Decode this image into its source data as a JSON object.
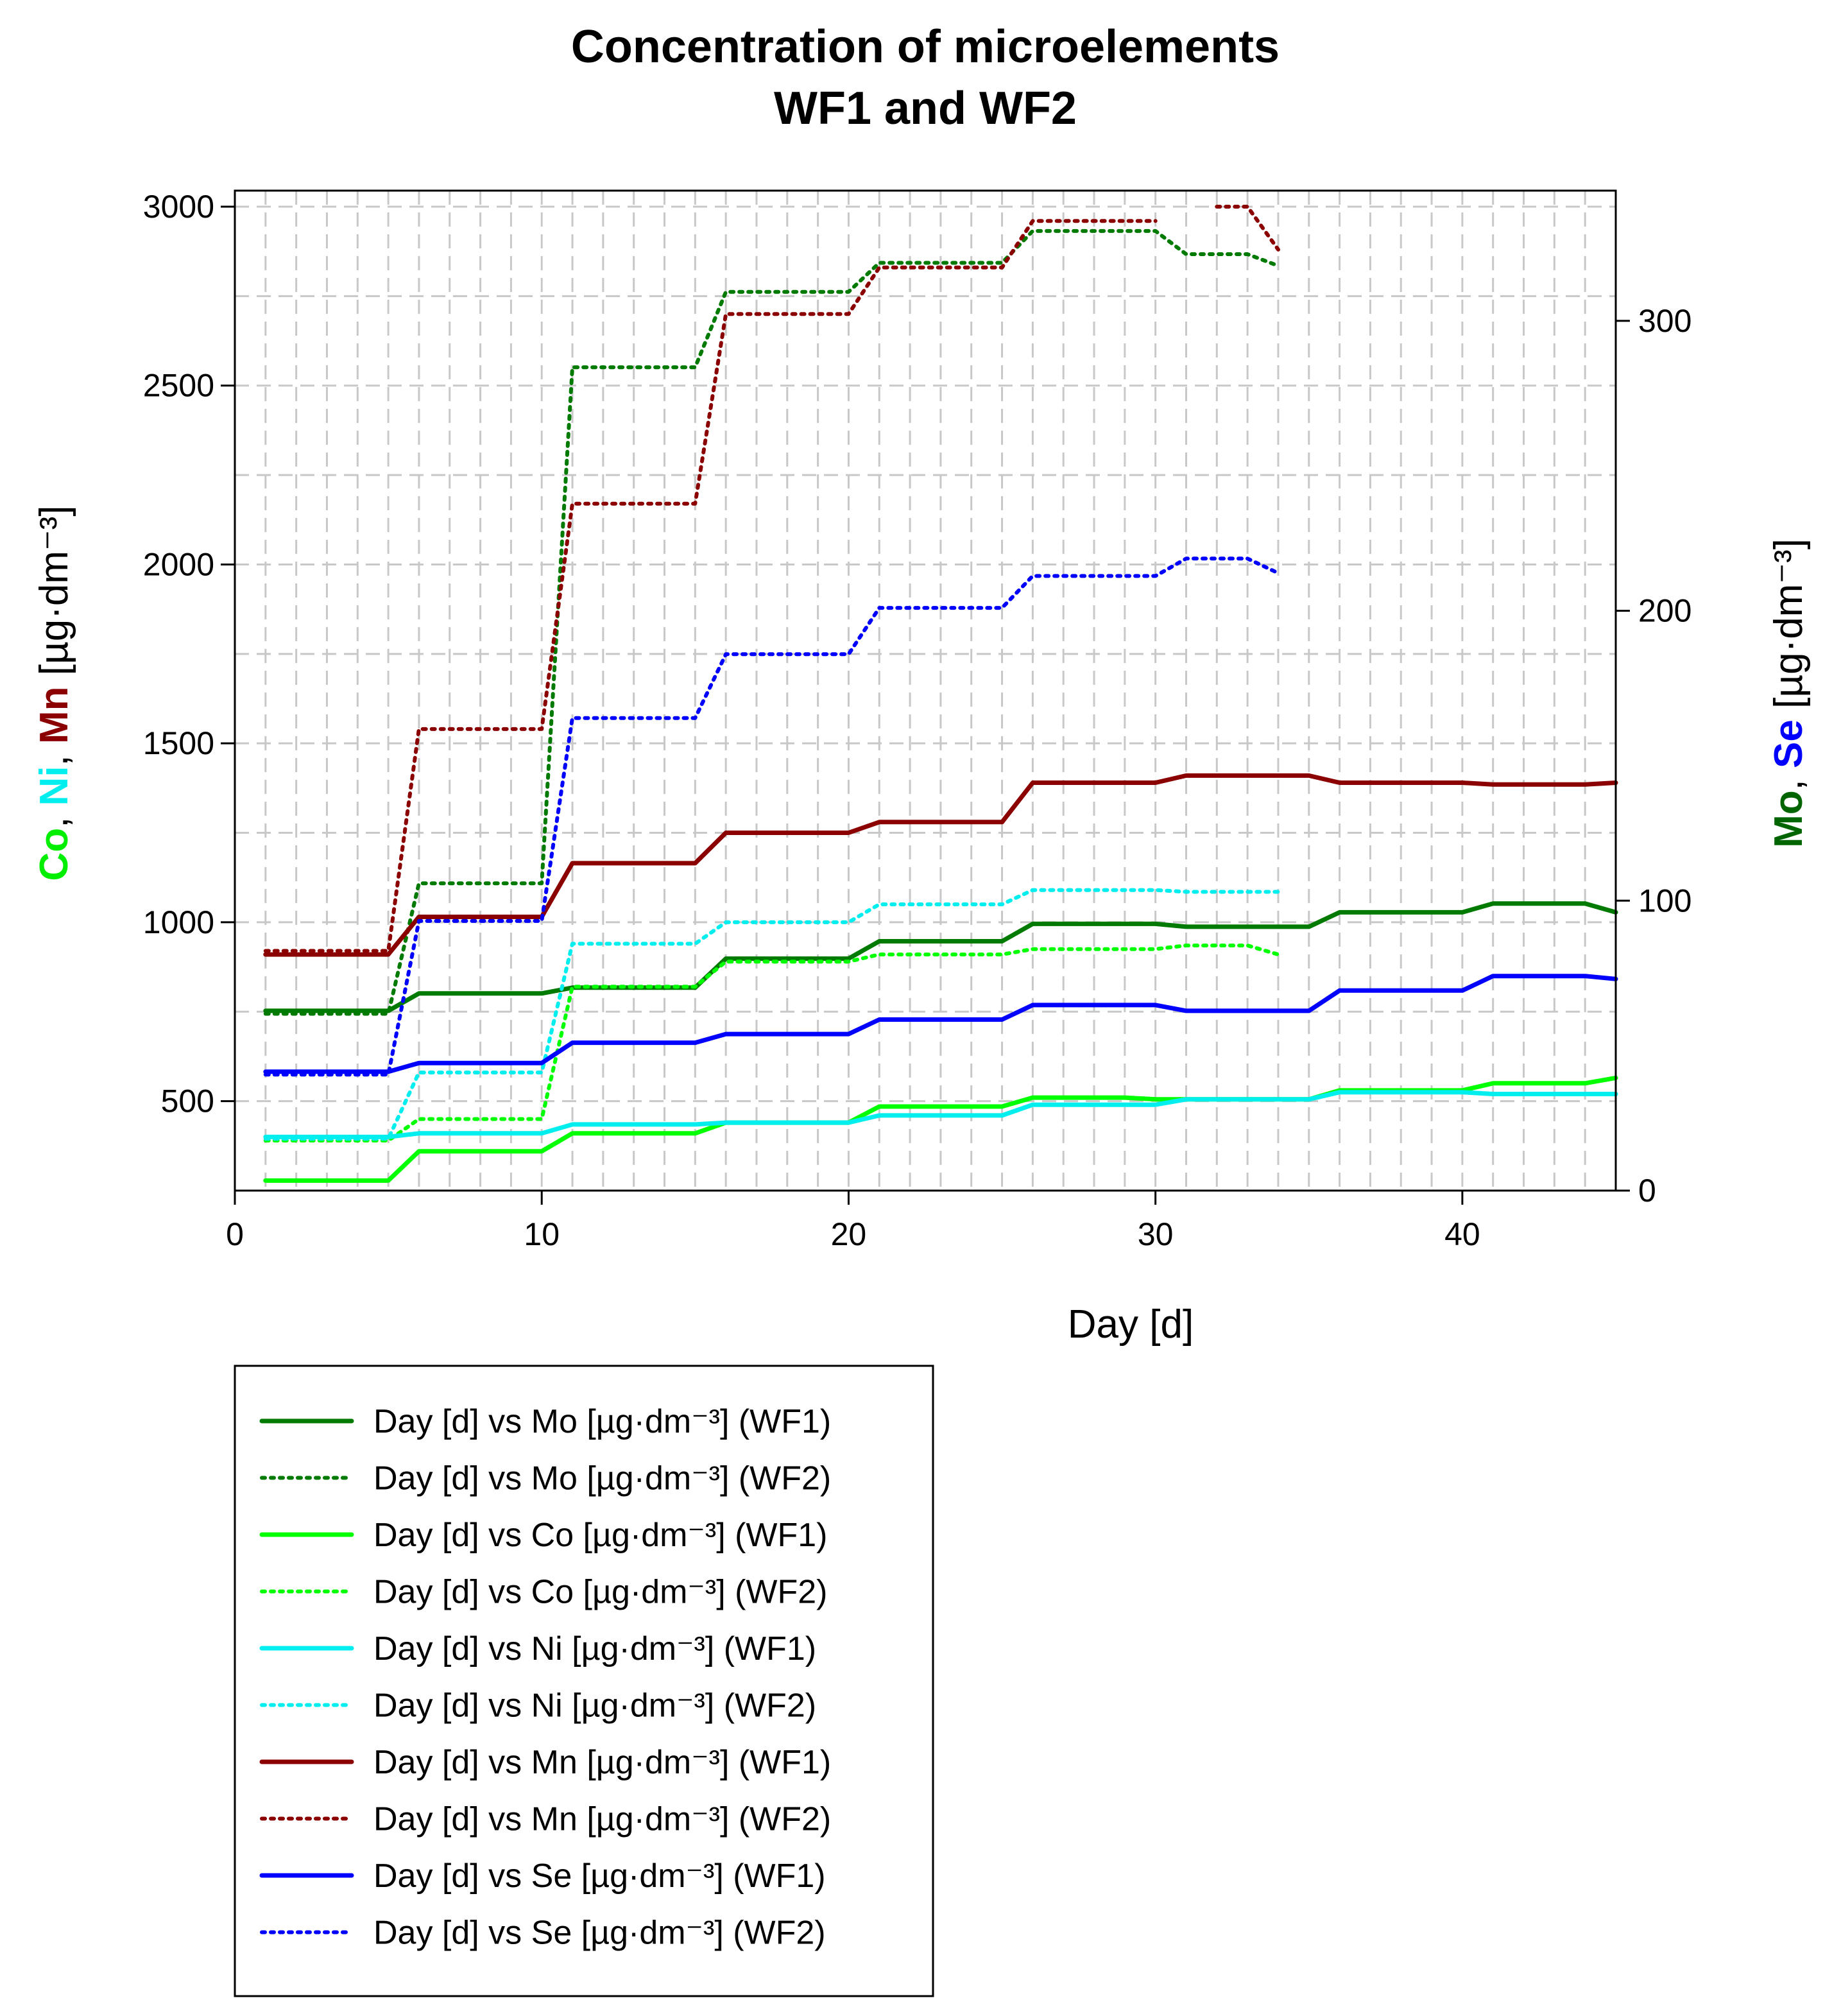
{
  "chart_data": {
    "type": "line",
    "title_line1": "Concentration of microelements",
    "title_line2": "WF1 and WF2",
    "xlabel": "Day [d]",
    "xlim": [
      0,
      45
    ],
    "xticks": [
      0,
      10,
      20,
      30,
      40
    ],
    "ylim_left": [
      250,
      3000
    ],
    "yticks_left": [
      500,
      1000,
      1500,
      2000,
      2500,
      3000
    ],
    "ylim_right": [
      0,
      345
    ],
    "yticks_right": [
      0,
      100,
      200,
      300
    ],
    "ylabel_left": {
      "parts": [
        {
          "text": "Co",
          "color": "#00ee00",
          "bold": true
        },
        {
          "text": ", ",
          "color": "#000000",
          "bold": false
        },
        {
          "text": "Ni",
          "color": "#00eeee",
          "bold": true
        },
        {
          "text": ", ",
          "color": "#000000",
          "bold": false
        },
        {
          "text": "Mn",
          "color": "#8b0000",
          "bold": true
        },
        {
          "text": " [µg·dm⁻³]",
          "color": "#000000",
          "bold": false
        }
      ]
    },
    "ylabel_right": {
      "parts": [
        {
          "text": "Mo",
          "color": "#006400",
          "bold": true
        },
        {
          "text": ", ",
          "color": "#000000",
          "bold": false
        },
        {
          "text": "Se",
          "color": "#0000ff",
          "bold": true
        },
        {
          "text": " [µg·dm⁻³]",
          "color": "#000000",
          "bold": false
        }
      ]
    },
    "series": [
      {
        "name": "Mo",
        "group": "WF1",
        "legend": "Day [d] vs Mo [µg·dm⁻³] (WF1)",
        "axis": "right",
        "color": "#007a00",
        "style": "solid",
        "x": [
          1,
          5,
          6,
          10,
          11,
          15,
          16,
          20,
          21,
          25,
          26,
          30,
          31,
          35,
          36,
          40,
          41,
          44,
          45
        ],
        "y": [
          62,
          62,
          68,
          68,
          70,
          70,
          80,
          80,
          86,
          86,
          92,
          92,
          91,
          91,
          96,
          96,
          99,
          99,
          96
        ]
      },
      {
        "name": "Mo",
        "group": "WF2",
        "legend": "Day [d] vs Mo [µg·dm⁻³] (WF2)",
        "axis": "right",
        "color": "#007a00",
        "style": "dotted",
        "x": [
          1,
          5,
          6,
          10,
          11,
          15,
          16,
          20,
          21,
          25,
          26,
          30,
          31,
          33,
          34
        ],
        "y": [
          61,
          61,
          106,
          106,
          284,
          284,
          310,
          310,
          320,
          320,
          331,
          331,
          323,
          323,
          319
        ]
      },
      {
        "name": "Co",
        "group": "WF1",
        "legend": "Day [d] vs Co [µg·dm⁻³] (WF1)",
        "axis": "left",
        "color": "#00ff00",
        "style": "solid",
        "x": [
          1,
          5,
          6,
          10,
          11,
          15,
          16,
          20,
          21,
          25,
          26,
          29,
          30,
          35,
          36,
          40,
          41,
          44,
          45
        ],
        "y": [
          278,
          278,
          360,
          360,
          410,
          410,
          440,
          440,
          485,
          485,
          510,
          510,
          505,
          505,
          530,
          530,
          550,
          550,
          565
        ]
      },
      {
        "name": "Co",
        "group": "WF2",
        "legend": "Day [d] vs Co [µg·dm⁻³] (WF2)",
        "axis": "left",
        "color": "#00ff00",
        "style": "dotted",
        "x": [
          1,
          5,
          6,
          10,
          11,
          15,
          16,
          20,
          21,
          25,
          26,
          30,
          31,
          33,
          34
        ],
        "y": [
          390,
          390,
          450,
          450,
          820,
          820,
          890,
          890,
          910,
          910,
          925,
          925,
          935,
          935,
          910
        ]
      },
      {
        "name": "Ni",
        "group": "WF1",
        "legend": "Day [d] vs Ni [µg·dm⁻³] (WF1)",
        "axis": "left",
        "color": "#00eeee",
        "style": "solid",
        "x": [
          1,
          5,
          6,
          10,
          11,
          15,
          16,
          20,
          21,
          25,
          26,
          30,
          31,
          35,
          36,
          40,
          41,
          45
        ],
        "y": [
          400,
          400,
          410,
          410,
          435,
          435,
          440,
          440,
          460,
          460,
          490,
          490,
          505,
          505,
          525,
          525,
          520,
          520
        ]
      },
      {
        "name": "Ni",
        "group": "WF2",
        "legend": "Day [d] vs Ni [µg·dm⁻³] (WF2)",
        "axis": "left",
        "color": "#00eeee",
        "style": "dotted",
        "x": [
          1,
          5,
          6,
          10,
          11,
          15,
          16,
          20,
          21,
          25,
          26,
          30,
          31,
          34
        ],
        "y": [
          395,
          395,
          580,
          580,
          940,
          940,
          1000,
          1000,
          1050,
          1050,
          1090,
          1090,
          1085,
          1085
        ]
      },
      {
        "name": "Mn",
        "group": "WF1",
        "legend": "Day [d] vs Mn [µg·dm⁻³] (WF1)",
        "axis": "left",
        "color": "#8b0000",
        "style": "solid",
        "x": [
          1,
          5,
          6,
          10,
          11,
          15,
          16,
          20,
          21,
          25,
          26,
          30,
          31,
          35,
          36,
          40,
          41,
          44,
          45
        ],
        "y": [
          910,
          910,
          1015,
          1015,
          1165,
          1165,
          1250,
          1250,
          1280,
          1280,
          1390,
          1390,
          1410,
          1410,
          1390,
          1390,
          1385,
          1385,
          1390
        ]
      },
      {
        "name": "Mn",
        "group": "WF2",
        "legend": "Day [d] vs Mn [µg·dm⁻³] (WF2)",
        "axis": "left",
        "color": "#8b0000",
        "style": "dotted",
        "x": [
          1,
          5,
          6,
          10,
          11,
          15,
          16,
          20,
          21,
          25,
          26,
          30
        ],
        "y": [
          920,
          920,
          1540,
          1540,
          2170,
          2170,
          2700,
          2700,
          2830,
          2830,
          2960,
          2960
        ],
        "x2": [
          32,
          33,
          34
        ],
        "y2": [
          3000,
          3000,
          2880
        ]
      },
      {
        "name": "Se",
        "group": "WF1",
        "legend": "Day [d] vs Se [µg·dm⁻³] (WF1)",
        "axis": "right",
        "color": "#0000ff",
        "style": "solid",
        "x": [
          1,
          5,
          6,
          10,
          11,
          15,
          16,
          20,
          21,
          25,
          26,
          30,
          31,
          35,
          36,
          40,
          41,
          44,
          45
        ],
        "y": [
          41,
          41,
          44,
          44,
          51,
          51,
          54,
          54,
          59,
          59,
          64,
          64,
          62,
          62,
          69,
          69,
          74,
          74,
          73
        ]
      },
      {
        "name": "Se",
        "group": "WF2",
        "legend": "Day [d] vs Se [µg·dm⁻³] (WF2)",
        "axis": "right",
        "color": "#0000ff",
        "style": "dotted",
        "x": [
          1,
          5,
          6,
          10,
          11,
          15,
          16,
          20,
          21,
          25,
          26,
          30,
          31,
          33,
          34
        ],
        "y": [
          40,
          40,
          93,
          93,
          163,
          163,
          185,
          185,
          201,
          201,
          212,
          212,
          218,
          218,
          213
        ]
      }
    ]
  }
}
